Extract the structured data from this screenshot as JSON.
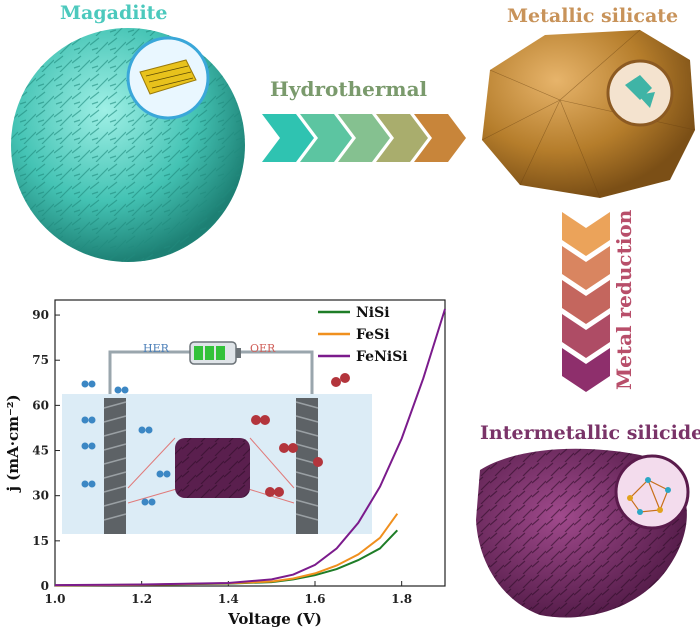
{
  "labels": {
    "magadiite": "Magadiite",
    "metallic_silicate": "Metallic silicate",
    "hydrothermal": "Hydrothermal",
    "metal_reduction": "Metal reduction",
    "intermetallic_silicide": "Intermetallic silicide",
    "her": "HER",
    "oer": "OER"
  },
  "colors": {
    "magadiite": "#4cc9bd",
    "metallic_silicate": "#c8935a",
    "silicide": "#7a3368",
    "chevron_start": "#2fc3b1",
    "chevron_end": "#c8853a"
  },
  "chart_data": {
    "type": "line",
    "xlabel": "Voltage (V)",
    "ylabel": "j (mA·cm⁻²)",
    "xlim": [
      1.0,
      1.9
    ],
    "ylim": [
      0,
      95
    ],
    "xticks": [
      "1.0",
      "1.2",
      "1.4",
      "1.6",
      "1.8"
    ],
    "yticks": [
      "0",
      "15",
      "30",
      "45",
      "60",
      "75",
      "90"
    ],
    "legend_position": "top-right",
    "series": [
      {
        "name": "NiSi",
        "color": "#1e7d27",
        "x": [
          1.0,
          1.2,
          1.4,
          1.5,
          1.55,
          1.6,
          1.65,
          1.7,
          1.75,
          1.79
        ],
        "y": [
          0.2,
          0.4,
          0.8,
          1.3,
          2.2,
          3.6,
          5.6,
          8.6,
          12.5,
          18.5
        ]
      },
      {
        "name": "FeSi",
        "color": "#f0901e",
        "x": [
          1.0,
          1.2,
          1.4,
          1.5,
          1.55,
          1.6,
          1.65,
          1.7,
          1.75,
          1.79
        ],
        "y": [
          0.2,
          0.4,
          0.9,
          1.5,
          2.5,
          4.2,
          6.8,
          10.5,
          16.0,
          24.0
        ]
      },
      {
        "name": "FeNiSi",
        "color": "#7b1b8c",
        "x": [
          1.0,
          1.2,
          1.4,
          1.5,
          1.55,
          1.6,
          1.65,
          1.7,
          1.75,
          1.8,
          1.85,
          1.9
        ],
        "y": [
          0.3,
          0.5,
          1.0,
          2.2,
          3.8,
          7.0,
          12.5,
          21.0,
          33.0,
          49.0,
          69.0,
          92.0
        ]
      }
    ]
  }
}
